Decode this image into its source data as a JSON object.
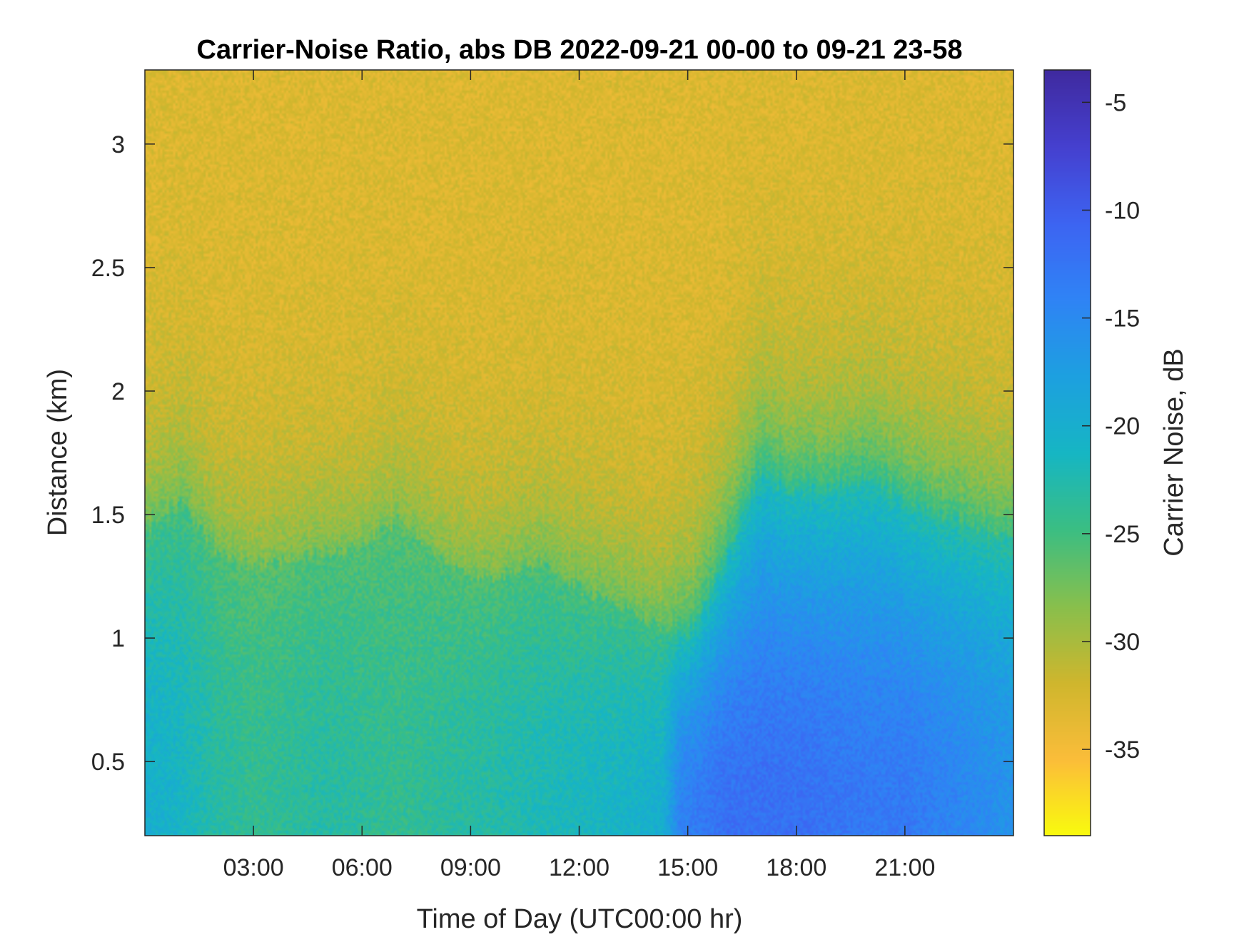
{
  "chart_data": {
    "type": "heatmap",
    "title": "Carrier-Noise Ratio, abs DB 2022-09-21 00-00 to 09-21 23-58",
    "xlabel": "Time of Day (UTC00:00 hr)",
    "ylabel": "Distance (km)",
    "colorbar_label": "Carrier Noise, dB",
    "x_range_hours": [
      0,
      24
    ],
    "x_ticks": [
      {
        "value": 3,
        "label": "03:00"
      },
      {
        "value": 6,
        "label": "06:00"
      },
      {
        "value": 9,
        "label": "09:00"
      },
      {
        "value": 12,
        "label": "12:00"
      },
      {
        "value": 15,
        "label": "15:00"
      },
      {
        "value": 18,
        "label": "18:00"
      },
      {
        "value": 21,
        "label": "21:00"
      }
    ],
    "y_range_km": [
      0.2,
      3.3
    ],
    "y_ticks": [
      {
        "value": 0.5,
        "label": "0.5"
      },
      {
        "value": 1,
        "label": "1"
      },
      {
        "value": 1.5,
        "label": "1.5"
      },
      {
        "value": 2,
        "label": "2"
      },
      {
        "value": 2.5,
        "label": "2.5"
      },
      {
        "value": 3,
        "label": "3"
      }
    ],
    "colorbar_range": [
      -39,
      -3.5
    ],
    "colorbar_ticks": [
      {
        "value": -5,
        "label": "-5"
      },
      {
        "value": -10,
        "label": "-10"
      },
      {
        "value": -15,
        "label": "-15"
      },
      {
        "value": -20,
        "label": "-20"
      },
      {
        "value": -25,
        "label": "-25"
      },
      {
        "value": -30,
        "label": "-30"
      },
      {
        "value": -35,
        "label": "-35"
      }
    ],
    "colormap": [
      "#f9fb0e",
      "#fbbd3a",
      "#cfb62d",
      "#88bf4d",
      "#3bbe83",
      "#16b6c4",
      "#1da0e0",
      "#2f84f5",
      "#3d64f2",
      "#4540cf",
      "#3f2a9f"
    ],
    "noise_floor_db": -33,
    "boundary_layer_top_km": [
      {
        "t": 0.0,
        "top": 1.42
      },
      {
        "t": 1.0,
        "top": 1.55
      },
      {
        "t": 2.0,
        "top": 1.35
      },
      {
        "t": 3.0,
        "top": 1.3
      },
      {
        "t": 4.0,
        "top": 1.32
      },
      {
        "t": 5.0,
        "top": 1.35
      },
      {
        "t": 6.0,
        "top": 1.38
      },
      {
        "t": 7.0,
        "top": 1.48
      },
      {
        "t": 8.0,
        "top": 1.35
      },
      {
        "t": 9.0,
        "top": 1.25
      },
      {
        "t": 10.0,
        "top": 1.26
      },
      {
        "t": 11.0,
        "top": 1.3
      },
      {
        "t": 12.0,
        "top": 1.2
      },
      {
        "t": 13.0,
        "top": 1.15
      },
      {
        "t": 14.0,
        "top": 1.05
      },
      {
        "t": 15.0,
        "top": 1.0
      },
      {
        "t": 16.0,
        "top": 1.3
      },
      {
        "t": 17.0,
        "top": 1.65
      },
      {
        "t": 18.0,
        "top": 1.6
      },
      {
        "t": 19.0,
        "top": 1.6
      },
      {
        "t": 20.0,
        "top": 1.65
      },
      {
        "t": 21.0,
        "top": 1.55
      },
      {
        "t": 22.0,
        "top": 1.5
      },
      {
        "t": 23.0,
        "top": 1.45
      },
      {
        "t": 24.0,
        "top": 1.4
      }
    ],
    "surface_cnr_db": [
      {
        "t": 0.0,
        "cnr": -20
      },
      {
        "t": 1.0,
        "cnr": -21
      },
      {
        "t": 2.0,
        "cnr": -23
      },
      {
        "t": 3.0,
        "cnr": -24
      },
      {
        "t": 5.0,
        "cnr": -23
      },
      {
        "t": 7.0,
        "cnr": -24
      },
      {
        "t": 9.0,
        "cnr": -23
      },
      {
        "t": 11.0,
        "cnr": -22
      },
      {
        "t": 13.0,
        "cnr": -21
      },
      {
        "t": 14.3,
        "cnr": -20
      },
      {
        "t": 14.8,
        "cnr": -14
      },
      {
        "t": 16.0,
        "cnr": -12
      },
      {
        "t": 18.0,
        "cnr": -12
      },
      {
        "t": 20.0,
        "cnr": -13
      },
      {
        "t": 21.0,
        "cnr": -13
      },
      {
        "t": 22.0,
        "cnr": -14
      },
      {
        "t": 24.0,
        "cnr": -16
      }
    ]
  }
}
